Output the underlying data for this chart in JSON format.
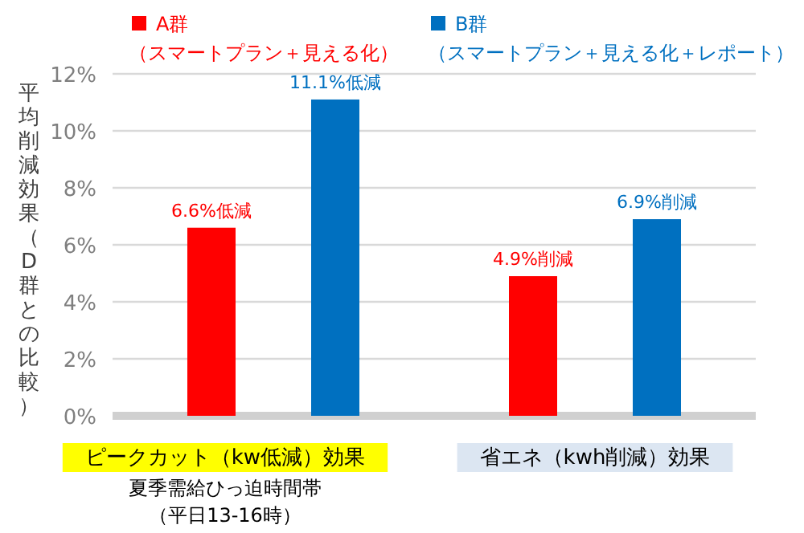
{
  "chart_data": {
    "type": "bar",
    "ylabel": "平均削減効果（D群との比較）",
    "categories": [
      "ピークカット（kw低減）効果",
      "省エネ（kwh削減）効果"
    ],
    "series": [
      {
        "name": "A群（スマートプラン＋見える化）",
        "color": "#ff0000",
        "values": [
          6.6,
          4.9
        ],
        "value_labels": [
          "6.6%低減",
          "4.9%削減"
        ]
      },
      {
        "name": "B群（スマートプラン＋見える化＋レポート）",
        "color": "#0070c0",
        "values": [
          11.1,
          6.9
        ],
        "value_labels": [
          "11.1%低減",
          "6.9%削減"
        ]
      }
    ],
    "ylim": [
      0,
      12
    ],
    "yticks": [
      {
        "value": 0,
        "label": "0%"
      },
      {
        "value": 2,
        "label": "2%"
      },
      {
        "value": 4,
        "label": "4%"
      },
      {
        "value": 6,
        "label": "6%"
      },
      {
        "value": 8,
        "label": "8%"
      },
      {
        "value": 10,
        "label": "10%"
      },
      {
        "value": 12,
        "label": "12%"
      }
    ],
    "grid": "y",
    "legend": "top",
    "annotations": [
      "夏季需給ひっ迫時間帯",
      "（平日13-16時）"
    ]
  }
}
